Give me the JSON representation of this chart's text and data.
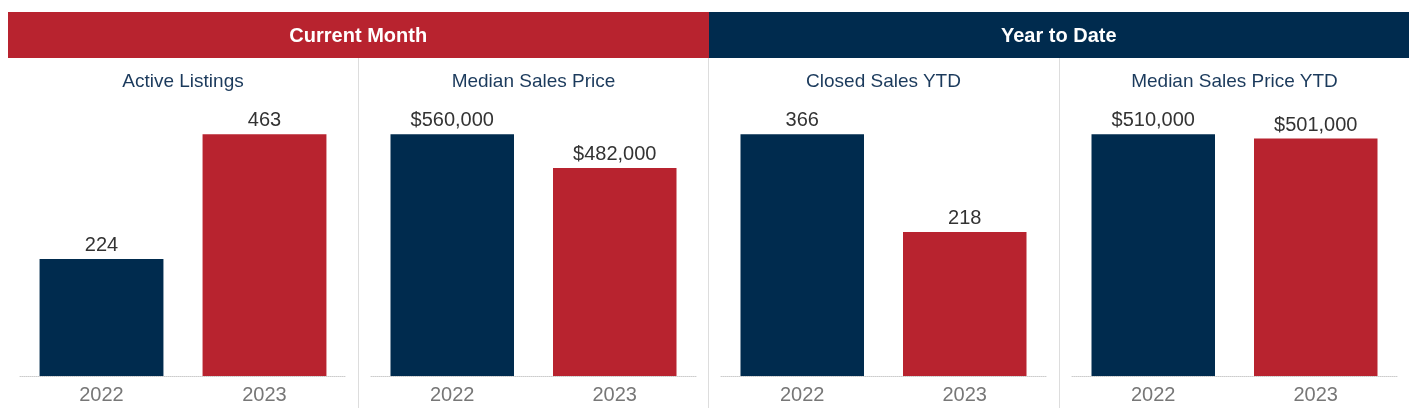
{
  "chart_data": [
    {
      "type": "bar",
      "title": "Active Listings",
      "annotations": [
        "Current Month"
      ],
      "categories": [
        "2022",
        "2023"
      ],
      "values": [
        224,
        463
      ],
      "colors": [
        "#002b4e",
        "#b8232f"
      ],
      "data_labels": true
    },
    {
      "type": "bar",
      "title": "Median Sales Price",
      "categories": [
        "2022",
        "2023"
      ],
      "values": [
        560000,
        482000
      ],
      "colors": [
        "#002b4e",
        "#b8232f"
      ],
      "value_labels": [
        "$560,000",
        "$482,000"
      ]
    },
    {
      "type": "bar",
      "title": "Closed Sales YTD",
      "annotations": [
        "Year to Date"
      ],
      "categories": [
        "2022",
        "2023"
      ],
      "values": [
        366,
        218
      ],
      "colors": [
        "#002b4e",
        "#b8232f"
      ],
      "data_labels": true
    },
    {
      "type": "bar",
      "title": "Median Sales Price YTD",
      "categories": [
        "2022",
        "2023"
      ],
      "values": [
        510000,
        501000
      ],
      "colors": [
        "#002b4e",
        "#b8232f"
      ],
      "value_labels": [
        "$510,000",
        "$501,000"
      ]
    }
  ]
}
